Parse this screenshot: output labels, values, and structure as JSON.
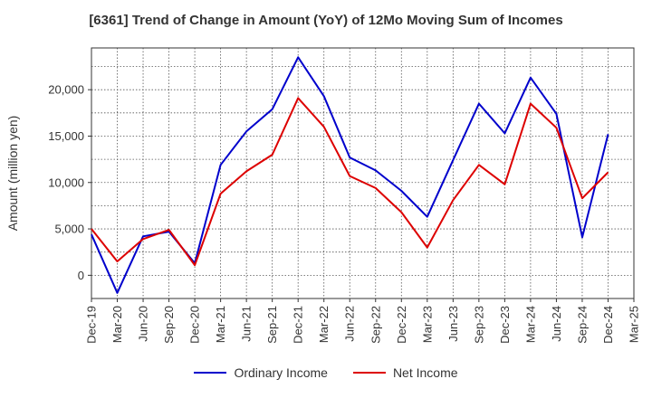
{
  "chart_data": {
    "type": "line",
    "title": "[6361]  Trend of Change in Amount (YoY) of 12Mo Moving Sum of Incomes",
    "xlabel": "",
    "ylabel": "Amount (million yen)",
    "x": [
      "Dec-19",
      "Mar-20",
      "Jun-20",
      "Sep-20",
      "Dec-20",
      "Mar-21",
      "Jun-21",
      "Sep-21",
      "Dec-21",
      "Mar-22",
      "Jun-22",
      "Sep-22",
      "Dec-22",
      "Mar-23",
      "Jun-23",
      "Sep-23",
      "Dec-23",
      "Mar-24",
      "Jun-24",
      "Sep-24",
      "Dec-24",
      "Mar-25"
    ],
    "ylim": [
      -2500,
      24500
    ],
    "yticks": [
      0,
      5000,
      10000,
      15000,
      20000
    ],
    "ytick_labels": [
      "0",
      "5,000",
      "10,000",
      "15,000",
      "20,000"
    ],
    "grid": true,
    "legend_position": "bottom-center",
    "series": [
      {
        "name": "Ordinary Income",
        "color": "#0000cc",
        "values": [
          4400,
          -1900,
          4200,
          4700,
          1300,
          11900,
          15500,
          17900,
          23500,
          19300,
          12700,
          11300,
          9100,
          6300,
          12400,
          18500,
          15300,
          21300,
          17400,
          4100,
          15200,
          null
        ]
      },
      {
        "name": "Net Income",
        "color": "#dd0000",
        "values": [
          5000,
          1500,
          3900,
          4900,
          1100,
          8800,
          11200,
          13000,
          19100,
          16000,
          10700,
          9400,
          6800,
          3000,
          8100,
          11900,
          9800,
          18500,
          15900,
          8300,
          11100,
          null
        ]
      }
    ]
  }
}
